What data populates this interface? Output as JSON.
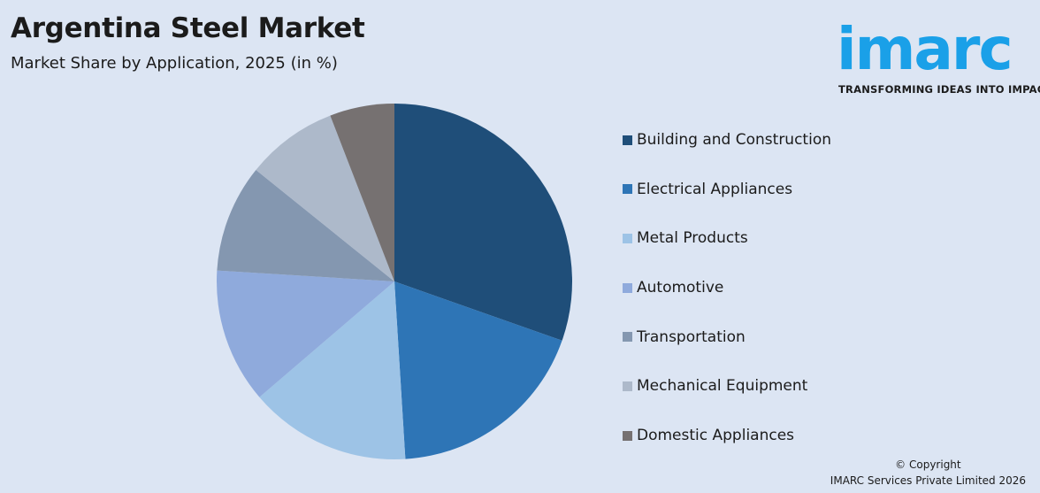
{
  "header": {
    "title": "Argentina Steel Market",
    "subtitle": "Market Share by Application, 2025 (in %)"
  },
  "logo": {
    "wordmark": "imarc",
    "tagline": "TRANSFORMING IDEAS INTO IMPACT",
    "color": "#1aa0e8"
  },
  "chart_data": {
    "type": "pie",
    "title": "Argentina Steel Market",
    "subtitle": "Market Share by Application, 2025 (in %)",
    "legend_position": "right",
    "slices": [
      {
        "label": "Building and Construction",
        "value": 31,
        "color": "#1f4e79"
      },
      {
        "label": "Electrical Appliances",
        "value": 19,
        "color": "#2e75b6"
      },
      {
        "label": "Metal Products",
        "value": 15,
        "color": "#9dc3e6"
      },
      {
        "label": "Automotive",
        "value": 12.5,
        "color": "#8faadc"
      },
      {
        "label": "Transportation",
        "value": 10,
        "color": "#8497b0"
      },
      {
        "label": "Mechanical Equipment",
        "value": 8.5,
        "color": "#adb9ca"
      },
      {
        "label": "Domestic Appliances",
        "value": 6,
        "color": "#767171"
      }
    ]
  },
  "footer": {
    "copyright_line1": "© Copyright",
    "copyright_line2": "IMARC Services Private Limited 2026"
  }
}
